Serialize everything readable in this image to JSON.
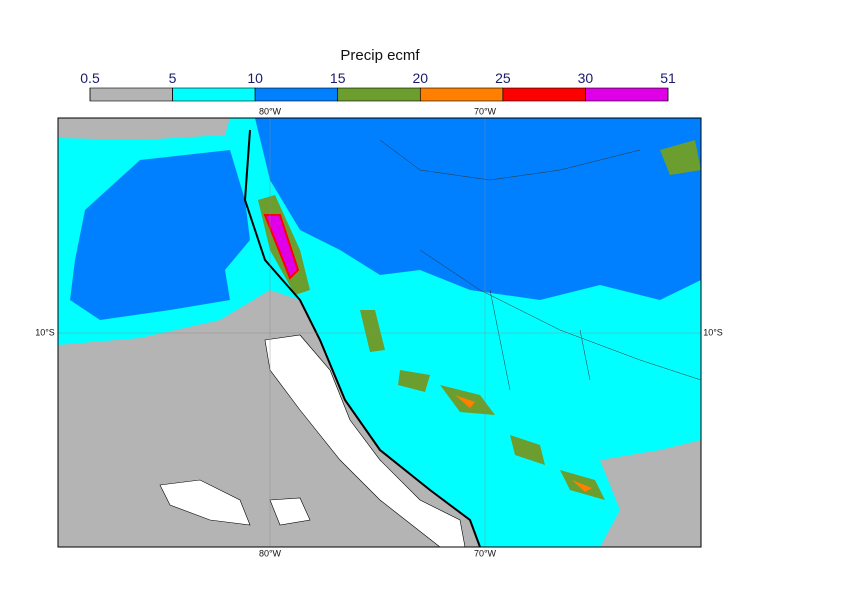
{
  "title": "Precip ecmf",
  "legend": {
    "levels": [
      0.5,
      5,
      10,
      15,
      20,
      25,
      30,
      51
    ],
    "colors": [
      "#b4b4b4",
      "#00ffff",
      "#0080ff",
      "#6b9e2e",
      "#ff8000",
      "#ff0000",
      "#e000e8"
    ]
  },
  "map": {
    "lon_labels": [
      "80°W",
      "70°W"
    ],
    "lat_labels": [
      "10°S"
    ]
  }
}
